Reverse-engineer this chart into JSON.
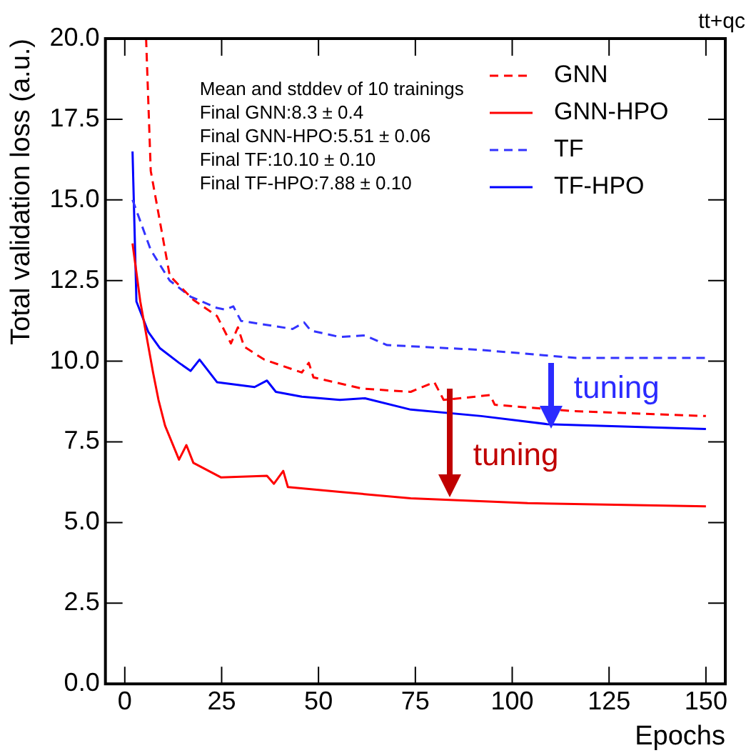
{
  "chart_data": {
    "type": "line",
    "title": "tt+qc",
    "xlabel": "Epochs",
    "ylabel": "Total validation loss (a.u.)",
    "xlim": [
      -5,
      155
    ],
    "ylim": [
      0,
      20
    ],
    "xticks": [
      0,
      25,
      50,
      75,
      100,
      125,
      150
    ],
    "yticks": [
      {
        "value": 0,
        "label": "0.0"
      },
      {
        "value": 2.5,
        "label": "2.5"
      },
      {
        "value": 5,
        "label": "5.0"
      },
      {
        "value": 7.5,
        "label": "7.5"
      },
      {
        "value": 10,
        "label": "10.0"
      },
      {
        "value": 12.5,
        "label": "12.5"
      },
      {
        "value": 15,
        "label": "15.0"
      },
      {
        "value": 17.5,
        "label": "17.5"
      },
      {
        "value": 20,
        "label": "20.0"
      }
    ],
    "grid": false,
    "legend": "top right",
    "marker": "none",
    "annotations": [
      "Mean and stddev of 10 trainings",
      "Final GNN:8.3 ± 0.4",
      "Final GNN-HPO:5.51 ± 0.06",
      "Final TF:10.10 ± 0.10",
      "Final TF-HPO:7.88 ± 0.10",
      {
        "text": "tuning",
        "x": 110,
        "y": 7.9
      },
      {
        "text": "tuning",
        "x": 84,
        "y": 5.8
      }
    ],
    "series": [
      {
        "name": "GNN",
        "color": "#ff0000",
        "line_style": "dashed",
        "x": [
          5.5,
          6.7,
          11.6,
          17.7,
          23.8,
          27.4,
          29.2,
          30.8,
          36,
          45.7,
          47.5,
          48.7,
          61.3,
          73.8,
          79.9,
          82.3,
          94.3,
          95.5,
          116,
          150
        ],
        "values": [
          20,
          15.9,
          12.65,
          11.9,
          11.4,
          10.55,
          11.05,
          10.45,
          10.05,
          9.65,
          9.95,
          9.5,
          9.15,
          9.05,
          9.35,
          8.8,
          8.95,
          8.65,
          8.45,
          8.3
        ]
      },
      {
        "name": "GNN-HPO",
        "color": "#ff0000",
        "line_style": "solid",
        "x": [
          2,
          4,
          7.3,
          8.7,
          10.4,
          14,
          15.9,
          17.7,
          24.8,
          36.7,
          38.5,
          40.9,
          42.1,
          55.5,
          73.8,
          104,
          150
        ],
        "values": [
          13.65,
          11.85,
          9.65,
          8.8,
          8,
          6.95,
          7.4,
          6.85,
          6.4,
          6.45,
          6.2,
          6.6,
          6.1,
          5.95,
          5.75,
          5.6,
          5.5
        ]
      },
      {
        "name": "TF",
        "color": "#3333ff",
        "line_style": "dashed",
        "x": [
          2,
          6.7,
          11.6,
          17,
          23.8,
          26,
          28,
          30,
          43.3,
          46.3,
          48,
          55.5,
          62,
          67.7,
          92,
          116.5,
          150
        ],
        "values": [
          15,
          13.45,
          12.5,
          12,
          11.65,
          11.6,
          11.7,
          11.25,
          11,
          11.2,
          10.95,
          10.75,
          10.8,
          10.5,
          10.35,
          10.1,
          10.1
        ]
      },
      {
        "name": "TF-HPO",
        "color": "#0000ff",
        "line_style": "solid",
        "x": [
          2,
          3,
          6.1,
          9.1,
          14,
          17,
          19.3,
          23.8,
          33.5,
          36.7,
          39,
          45.7,
          55.5,
          62,
          73.8,
          92,
          109,
          150
        ],
        "values": [
          16.5,
          11.85,
          10.9,
          10.4,
          9.95,
          9.7,
          10.05,
          9.35,
          9.2,
          9.4,
          9.05,
          8.9,
          8.8,
          8.85,
          8.5,
          8.3,
          8.05,
          7.9
        ]
      }
    ]
  }
}
